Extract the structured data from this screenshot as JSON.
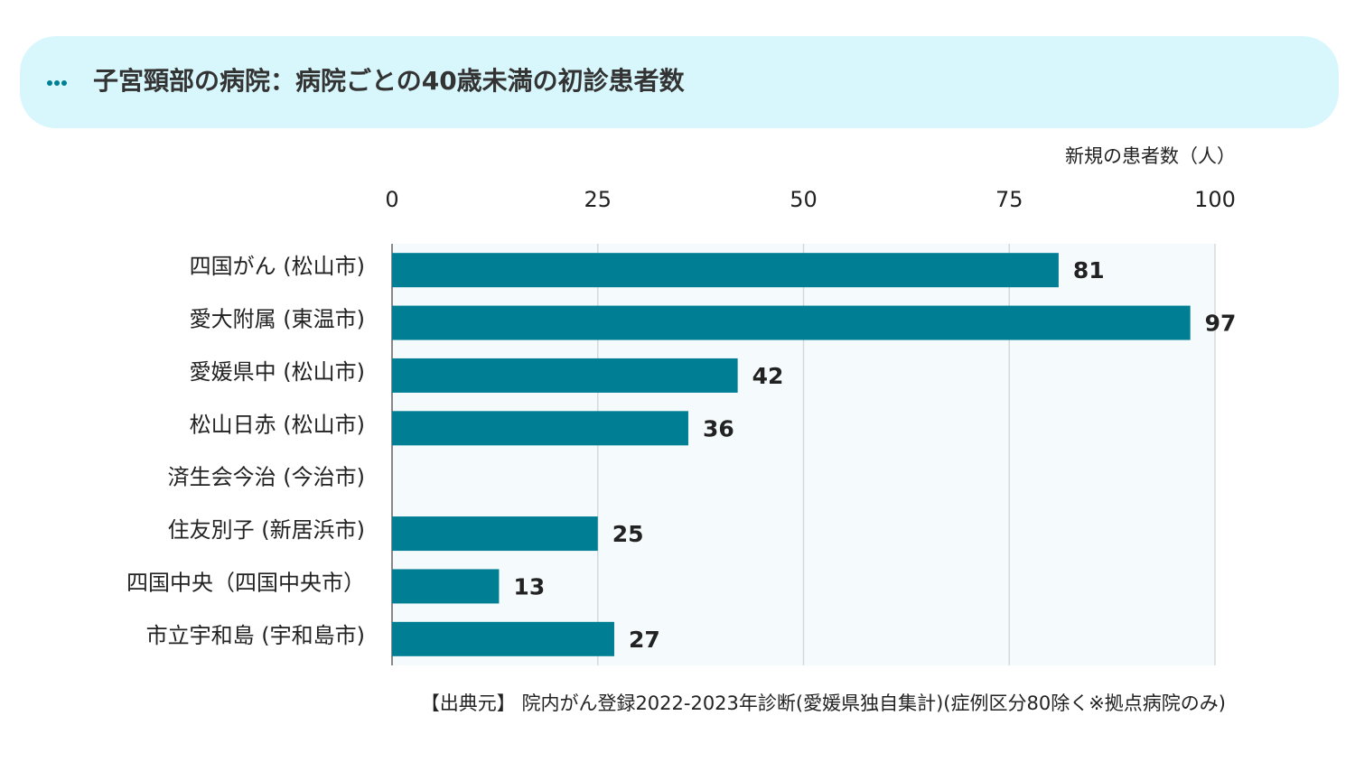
{
  "chart_data": {
    "type": "hbar",
    "title": "子宮頸部の病院：病院ごとの40歳未満の初診患者数",
    "value_axis_label": "新規の患者数（人）",
    "categories": [
      "四国がん (松山市)",
      "愛大附属 (東温市)",
      "愛媛県中 (松山市)",
      "松山日赤 (松山市)",
      "済生会今治 (今治市)",
      "住友別子 (新居浜市)",
      "四国中央（四国中央市）",
      "市立宇和島 (宇和島市)"
    ],
    "values": [
      81,
      97,
      42,
      36,
      null,
      25,
      13,
      27
    ],
    "color": "#007f94",
    "xlim": [
      0,
      100
    ],
    "xticks": [
      0,
      25,
      50,
      75,
      100
    ],
    "grid": true,
    "source": "【出典元】 院内がん登録2022-2023年診断(愛媛県独自集計)(症例区分80除く※拠点病院のみ)"
  }
}
